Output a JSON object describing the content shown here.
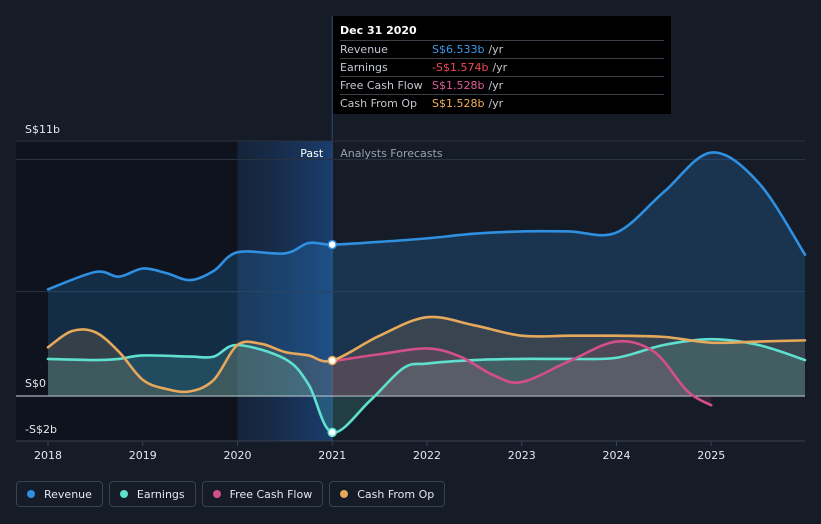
{
  "tooltip": {
    "date": "Dec 31 2020",
    "rows": [
      {
        "label": "Revenue",
        "value": "S$6.533b",
        "unit": "/yr",
        "color": "#3b9bea"
      },
      {
        "label": "Earnings",
        "value": "-S$1.574b",
        "unit": "/yr",
        "color": "#f04a53"
      },
      {
        "label": "Free Cash Flow",
        "value": "S$1.528b",
        "unit": "/yr",
        "color": "#e05c9a"
      },
      {
        "label": "Cash From Op",
        "value": "S$1.528b",
        "unit": "/yr",
        "color": "#f0b15a"
      }
    ]
  },
  "legend": [
    {
      "label": "Revenue",
      "color": "#2f8fe0",
      "icon": "dot-icon"
    },
    {
      "label": "Earnings",
      "color": "#5fe0cf",
      "icon": "dot-icon"
    },
    {
      "label": "Free Cash Flow",
      "color": "#d44f8a",
      "icon": "dot-icon"
    },
    {
      "label": "Cash From Op",
      "color": "#e6a85a",
      "icon": "dot-icon"
    }
  ],
  "chart_data": {
    "type": "line",
    "y_tick_labels": [
      "S$11b",
      "S$0",
      "-S$2b"
    ],
    "y_tick_values": [
      11,
      0,
      -2
    ],
    "x_tick_labels": [
      "2018",
      "2019",
      "2020",
      "2021",
      "2022",
      "2023",
      "2024",
      "2025"
    ],
    "xlim": [
      2018,
      2025.99
    ],
    "ylim": [
      -2,
      11
    ],
    "past_label": "Past",
    "forecast_label": "Analysts Forecasts",
    "divider_x": 2021.0,
    "highlight_start_x": 2020.0,
    "series": [
      {
        "name": "Revenue",
        "color": "#2f8fe0",
        "points": [
          [
            2018,
            4.6
          ],
          [
            2018.5,
            5.35
          ],
          [
            2018.75,
            5.15
          ],
          [
            2019,
            5.5
          ],
          [
            2019.25,
            5.3
          ],
          [
            2019.5,
            5.0
          ],
          [
            2019.75,
            5.4
          ],
          [
            2020,
            6.2
          ],
          [
            2020.5,
            6.15
          ],
          [
            2020.75,
            6.6
          ],
          [
            2021,
            6.53
          ],
          [
            2021.5,
            6.65
          ],
          [
            2022,
            6.8
          ],
          [
            2022.5,
            7.0
          ],
          [
            2023,
            7.1
          ],
          [
            2023.5,
            7.1
          ],
          [
            2024,
            7.05
          ],
          [
            2024.5,
            8.8
          ],
          [
            2025,
            10.5
          ],
          [
            2025.5,
            9.2
          ],
          [
            2025.99,
            6.1
          ]
        ]
      },
      {
        "name": "Earnings",
        "color": "#5fe0cf",
        "points": [
          [
            2018,
            1.6
          ],
          [
            2018.5,
            1.55
          ],
          [
            2018.75,
            1.6
          ],
          [
            2019,
            1.75
          ],
          [
            2019.5,
            1.7
          ],
          [
            2019.75,
            1.7
          ],
          [
            2020,
            2.2
          ],
          [
            2020.5,
            1.6
          ],
          [
            2020.75,
            0.5
          ],
          [
            2021,
            -1.57
          ],
          [
            2021.4,
            -0.2
          ],
          [
            2021.75,
            1.2
          ],
          [
            2022,
            1.4
          ],
          [
            2022.5,
            1.55
          ],
          [
            2023,
            1.6
          ],
          [
            2023.5,
            1.6
          ],
          [
            2024,
            1.65
          ],
          [
            2024.5,
            2.2
          ],
          [
            2025,
            2.45
          ],
          [
            2025.5,
            2.2
          ],
          [
            2025.99,
            1.55
          ]
        ]
      },
      {
        "name": "Free Cash Flow",
        "color": "#d44f8a",
        "points": [
          [
            2021,
            1.5
          ],
          [
            2021.5,
            1.8
          ],
          [
            2022,
            2.05
          ],
          [
            2022.35,
            1.7
          ],
          [
            2022.7,
            0.9
          ],
          [
            2023,
            0.6
          ],
          [
            2023.5,
            1.5
          ],
          [
            2024,
            2.35
          ],
          [
            2024.4,
            1.9
          ],
          [
            2024.75,
            0.2
          ],
          [
            2025,
            -0.4
          ]
        ]
      },
      {
        "name": "Cash From Op",
        "color": "#e6a85a",
        "points": [
          [
            2018,
            2.1
          ],
          [
            2018.25,
            2.8
          ],
          [
            2018.5,
            2.75
          ],
          [
            2018.75,
            1.9
          ],
          [
            2019,
            0.7
          ],
          [
            2019.25,
            0.3
          ],
          [
            2019.5,
            0.2
          ],
          [
            2019.75,
            0.7
          ],
          [
            2020,
            2.2
          ],
          [
            2020.25,
            2.25
          ],
          [
            2020.5,
            1.9
          ],
          [
            2020.75,
            1.75
          ],
          [
            2021,
            1.53
          ],
          [
            2021.5,
            2.6
          ],
          [
            2022,
            3.4
          ],
          [
            2022.5,
            3.05
          ],
          [
            2023,
            2.6
          ],
          [
            2023.5,
            2.6
          ],
          [
            2024,
            2.6
          ],
          [
            2024.5,
            2.55
          ],
          [
            2025,
            2.3
          ],
          [
            2025.5,
            2.35
          ],
          [
            2025.99,
            2.4
          ]
        ]
      }
    ],
    "markers": [
      {
        "series": "Revenue",
        "x": 2021,
        "y": 6.53
      },
      {
        "series": "Earnings",
        "x": 2021,
        "y": -1.57
      },
      {
        "series": "Cash From Op",
        "x": 2021,
        "y": 1.53
      }
    ]
  }
}
